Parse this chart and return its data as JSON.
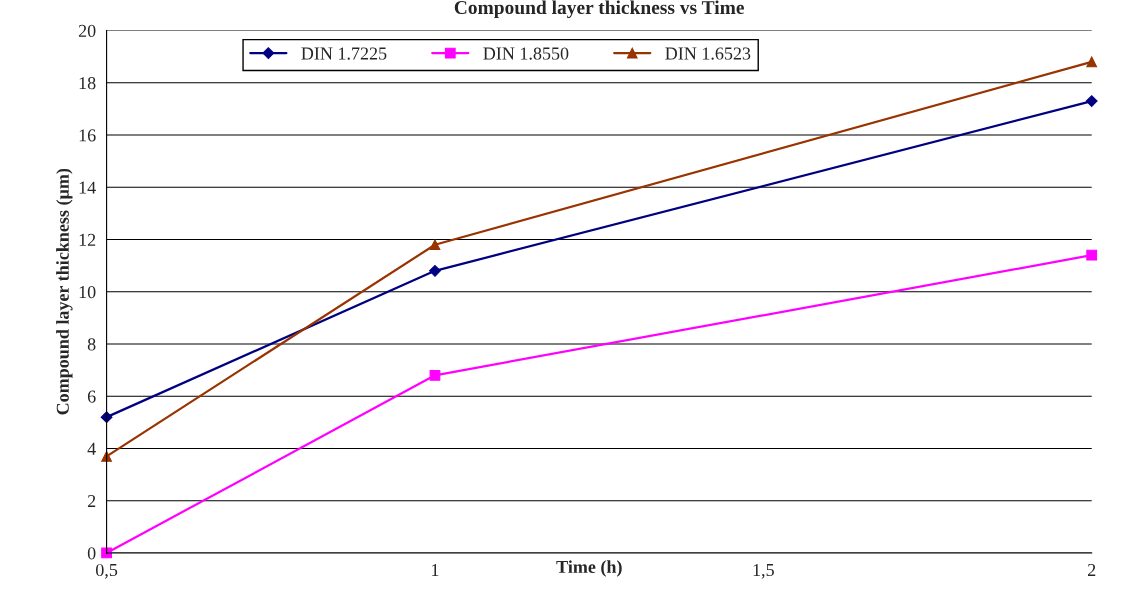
{
  "chart_data": {
    "type": "line",
    "title": "Compound layer thickness vs Time",
    "xlabel": "Time (h)",
    "ylabel": "Compound layer thickness (µm)",
    "x": [
      0.5,
      1,
      2
    ],
    "series": [
      {
        "name": "DIN 1.7225",
        "color": "#000080",
        "marker": "diamond",
        "values": [
          5.2,
          10.8,
          17.3
        ]
      },
      {
        "name": "DIN 1.8550",
        "color": "#ff00ff",
        "marker": "square",
        "values": [
          0,
          6.8,
          11.4
        ]
      },
      {
        "name": "DIN 1.6523",
        "color": "#993300",
        "marker": "triangle",
        "values": [
          3.7,
          11.8,
          18.8
        ]
      }
    ],
    "xlim": [
      0.5,
      2
    ],
    "xticks": [
      {
        "value": 0.5,
        "label": "0,5"
      },
      1,
      {
        "value": 1.5,
        "label": "1,5"
      },
      2
    ],
    "ylim": [
      0,
      20
    ],
    "yticks": [
      0,
      2,
      4,
      6,
      8,
      10,
      12,
      14,
      16,
      18,
      20
    ],
    "grid": "y",
    "legend": "top",
    "line_style": "solid"
  }
}
